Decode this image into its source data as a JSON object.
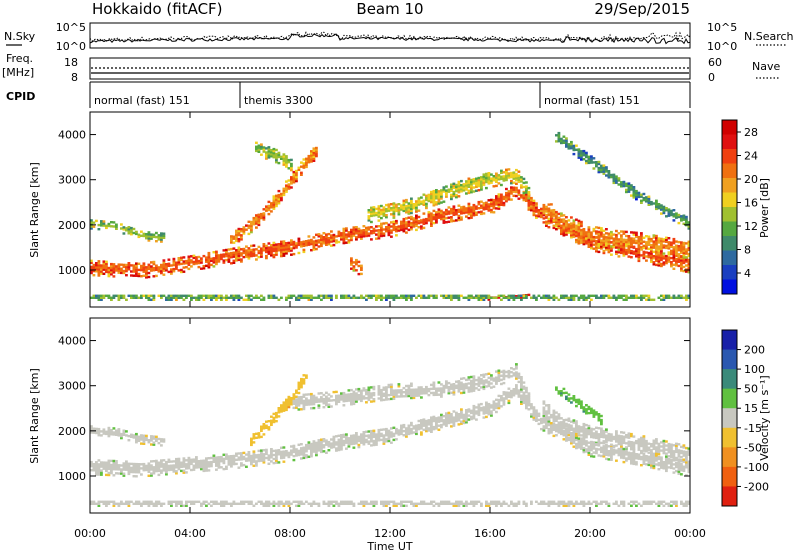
{
  "header": {
    "station": "Hokkaido (fitACF)",
    "beam": "Beam 10",
    "date": "29/Sep/2015"
  },
  "noise_panel": {
    "left_label": "N.Sky",
    "right_label": "N.Search",
    "left_ticks": [
      "10^5",
      "10^0"
    ],
    "right_ticks": [
      "10^5",
      "10^0"
    ]
  },
  "freq_panel": {
    "left_label_1": "Freq.",
    "left_label_2": "[MHz]",
    "right_label": "Nave",
    "left_ticks": [
      "18",
      "8"
    ],
    "right_ticks": [
      "60",
      "0"
    ]
  },
  "cpid_panel": {
    "label": "CPID",
    "segments": [
      {
        "name": "normal (fast) 151",
        "start_hour": 0
      },
      {
        "name": "themis 3300",
        "start_hour": 6
      },
      {
        "name": "normal (fast) 151",
        "start_hour": 18
      }
    ]
  },
  "x_axis": {
    "title": "Time UT",
    "ticks": [
      "00:00",
      "04:00",
      "08:00",
      "12:00",
      "16:00",
      "20:00",
      "00:00"
    ],
    "range_hours": [
      0,
      24
    ]
  },
  "power_colorbar": {
    "title": "Power [dB]",
    "ticks": [
      "28",
      "24",
      "20",
      "16",
      "12",
      "8",
      "4"
    ],
    "colors": [
      "#0010e0",
      "#1a3fc0",
      "#2e6aa0",
      "#3f8a6a",
      "#55a840",
      "#a0c030",
      "#f0d020",
      "#f0a020",
      "#f07010",
      "#f04010",
      "#e01010",
      "#d00000"
    ]
  },
  "velocity_colorbar": {
    "title": "Velocity [m s⁻¹]",
    "ticks": [
      "200",
      "100",
      "50",
      "15",
      "-15",
      "-50",
      "-100",
      "-200"
    ],
    "colors": [
      "#1820a8",
      "#2a58b0",
      "#3a8a7a",
      "#60c040",
      "#c8c8c0",
      "#f0c030",
      "#f09020",
      "#f06010",
      "#e02010"
    ]
  },
  "chart_data": [
    {
      "type": "heatmap",
      "panel": "power",
      "ylabel": "Slant Range [km]",
      "xlabel": "",
      "y_ticks": [
        1000,
        2000,
        3000,
        4000
      ],
      "ylim": [
        180,
        4500
      ],
      "xlim_hours": [
        0,
        24
      ],
      "color_range_db": [
        0,
        32
      ],
      "bands": [
        {
          "points": [
            [
              0,
              1050
            ],
            [
              2,
              980
            ],
            [
              4,
              1150
            ],
            [
              6,
              1350
            ],
            [
              8,
              1500
            ],
            [
              10,
              1750
            ],
            [
              12,
              1900
            ],
            [
              14,
              2200
            ],
            [
              16,
              2400
            ],
            [
              17,
              2800
            ],
            [
              18,
              2200
            ],
            [
              20,
              1600
            ],
            [
              22,
              1350
            ],
            [
              24,
              1100
            ]
          ],
          "width_km": 360,
          "value_db": 24
        },
        {
          "points": [
            [
              0,
              2000
            ],
            [
              1,
              1950
            ],
            [
              2,
              1750
            ],
            [
              3,
              1700
            ]
          ],
          "width_km": 200,
          "value_db": 14
        },
        {
          "points": [
            [
              5.5,
              1600
            ],
            [
              6.5,
              2000
            ],
            [
              7.5,
              2600
            ],
            [
              8.5,
              3300
            ],
            [
              9,
              3600
            ]
          ],
          "width_km": 280,
          "value_db": 22
        },
        {
          "points": [
            [
              11,
              2200
            ],
            [
              12,
              2300
            ],
            [
              13,
              2450
            ],
            [
              14,
              2650
            ],
            [
              15,
              2850
            ],
            [
              16,
              3000
            ],
            [
              17,
              3100
            ],
            [
              17.5,
              2700
            ]
          ],
          "width_km": 350,
          "value_db": 16
        },
        {
          "points": [
            [
              18,
              2400
            ],
            [
              19,
              2000
            ],
            [
              20,
              1750
            ],
            [
              21,
              1650
            ],
            [
              22,
              1600
            ],
            [
              23,
              1500
            ],
            [
              24,
              1400
            ]
          ],
          "width_km": 420,
          "value_db": 22
        },
        {
          "points": [
            [
              18.5,
              4000
            ],
            [
              20,
              3400
            ],
            [
              21,
              3000
            ],
            [
              22,
              2600
            ],
            [
              23,
              2300
            ],
            [
              24,
              2000
            ]
          ],
          "width_km": 260,
          "value_db": 10
        },
        {
          "points": [
            [
              6.5,
              3700
            ],
            [
              7.5,
              3500
            ],
            [
              8,
              3300
            ]
          ],
          "width_km": 300,
          "value_db": 14
        },
        {
          "points": [
            [
              10.3,
              1200
            ],
            [
              10.8,
              1000
            ]
          ],
          "width_km": 300,
          "value_db": 22
        },
        {
          "points": [
            [
              15.2,
              370
            ],
            [
              16.5,
              370
            ],
            [
              17.5,
              430
            ]
          ],
          "width_km": 90,
          "value_db": 28
        },
        {
          "points": [
            [
              0,
              380
            ],
            [
              24,
              380
            ]
          ],
          "width_km": 120,
          "value_db": 12
        }
      ]
    },
    {
      "type": "heatmap",
      "panel": "velocity",
      "ylabel": "Slant Range [km]",
      "xlabel": "Time UT",
      "y_ticks": [
        1000,
        2000,
        3000,
        4000
      ],
      "ylim": [
        180,
        4500
      ],
      "xlim_hours": [
        0,
        24
      ],
      "color_range_ms": [
        -250,
        250
      ],
      "bands": [
        {
          "points": [
            [
              0,
              1200
            ],
            [
              2,
              1150
            ],
            [
              4,
              1250
            ],
            [
              6,
              1350
            ],
            [
              8,
              1500
            ],
            [
              10,
              1750
            ],
            [
              12,
              1900
            ],
            [
              14,
              2200
            ],
            [
              16,
              2500
            ],
            [
              17,
              2900
            ],
            [
              18,
              2200
            ],
            [
              20,
              1600
            ],
            [
              22,
              1400
            ],
            [
              24,
              1150
            ]
          ],
          "width_km": 360,
          "value_ms": 0
        },
        {
          "points": [
            [
              8,
              2600
            ],
            [
              10,
              2700
            ],
            [
              12,
              2850
            ],
            [
              14,
              2900
            ],
            [
              16,
              3100
            ],
            [
              17,
              3300
            ],
            [
              17.5,
              2700
            ]
          ],
          "width_km": 320,
          "value_ms": 0
        },
        {
          "points": [
            [
              0,
              2000
            ],
            [
              1,
              1950
            ],
            [
              2,
              1800
            ],
            [
              3,
              1750
            ]
          ],
          "width_km": 200,
          "value_ms": 0
        },
        {
          "points": [
            [
              6.3,
              1700
            ],
            [
              7.2,
              2200
            ],
            [
              8,
              2700
            ],
            [
              8.6,
              3200
            ]
          ],
          "width_km": 260,
          "value_ms": -30
        },
        {
          "points": [
            [
              18,
              2500
            ],
            [
              19,
              2100
            ],
            [
              20,
              1900
            ],
            [
              21,
              1800
            ],
            [
              22,
              1700
            ],
            [
              24,
              1450
            ]
          ],
          "width_km": 380,
          "value_ms": 0
        },
        {
          "points": [
            [
              18.5,
              3000
            ],
            [
              19.5,
              2600
            ],
            [
              20.5,
              2200
            ]
          ],
          "width_km": 220,
          "value_ms": 40
        },
        {
          "points": [
            [
              0,
              380
            ],
            [
              24,
              380
            ]
          ],
          "width_km": 120,
          "value_ms": 0
        }
      ]
    }
  ]
}
